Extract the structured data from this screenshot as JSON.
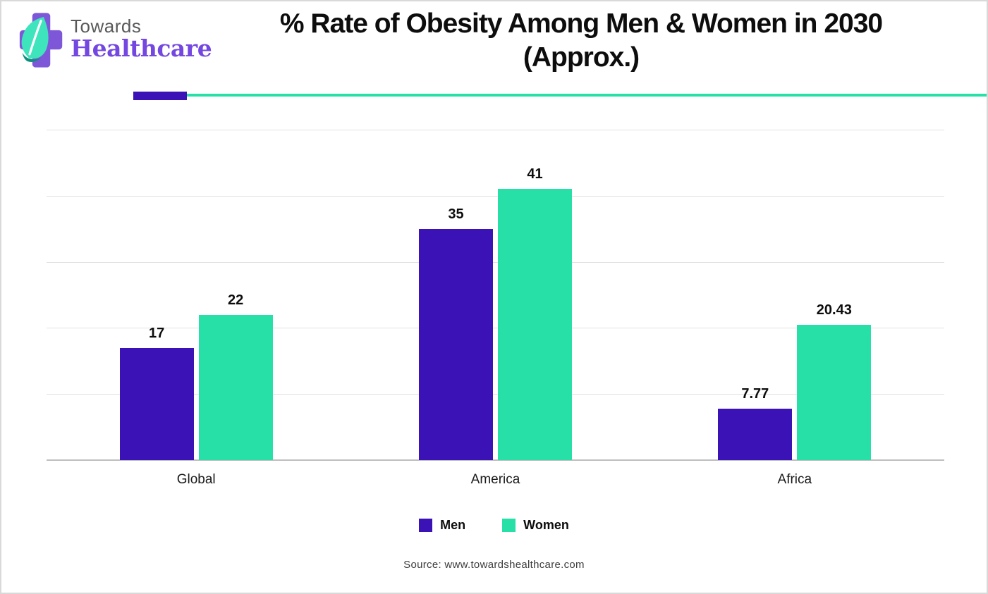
{
  "brand": {
    "name_line1": "Towards",
    "name_line2": "Healthcare",
    "logo_colors": {
      "cross": "#7e57d9",
      "leaf": "#3de4bc",
      "leaf_accent": "#0e8f7e",
      "towards_text": "#58595b",
      "healthcare_text": "#7447e1"
    }
  },
  "header": {
    "title_line1": "% Rate of Obesity Among Men & Women in 2030",
    "title_line2": "(Approx.)"
  },
  "divider": {
    "accent_color": "#3a12b5",
    "line_color": "#26e0a8"
  },
  "chart_data": {
    "type": "bar",
    "title": "% Rate of Obesity Among Men & Women in 2030 (Approx.)",
    "categories": [
      "Global",
      "America",
      "Africa"
    ],
    "series": [
      {
        "name": "Men",
        "color": "#3a12b5",
        "values": [
          17,
          35,
          7.77
        ]
      },
      {
        "name": "Women",
        "color": "#26e0a8",
        "values": [
          22,
          41,
          20.43
        ]
      }
    ],
    "xlabel": "",
    "ylabel": "",
    "ylim": [
      0,
      50
    ],
    "gridline_step": 10,
    "grid": "horizontal-only",
    "y_axis_labels_visible": false,
    "data_labels_visible": true,
    "legend_position": "bottom"
  },
  "footer": {
    "source": "Source: www.towardshealthcare.com"
  }
}
